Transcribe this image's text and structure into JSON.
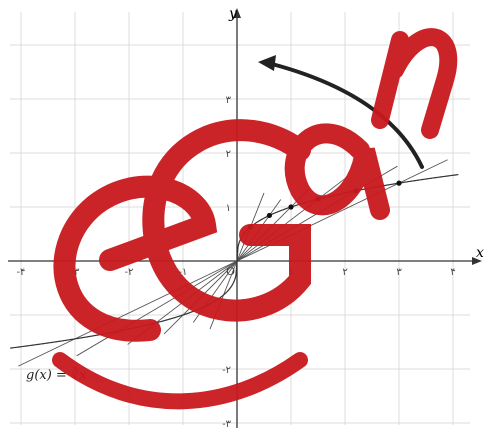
{
  "figure": {
    "axis_labels": {
      "x": "x",
      "y": "y"
    },
    "x_ticks": [
      {
        "value": -4,
        "label": "-۴"
      },
      {
        "value": -3,
        "label": "-۳"
      },
      {
        "value": -2,
        "label": "-۲"
      },
      {
        "value": -1,
        "label": "-۱"
      },
      {
        "value": 1,
        "label": "۱"
      },
      {
        "value": 2,
        "label": "۲"
      },
      {
        "value": 3,
        "label": "۳"
      },
      {
        "value": 4,
        "label": "۴"
      }
    ],
    "y_ticks": [
      {
        "value": 3,
        "label": "۳"
      },
      {
        "value": 2,
        "label": "۲"
      },
      {
        "value": 1,
        "label": "۱"
      },
      {
        "value": -2,
        "label": "-۲"
      },
      {
        "value": -3,
        "label": "-۳"
      }
    ],
    "function_label": "g(x) = ∛x",
    "origin_label": "O",
    "secant_point_xs": [
      0.25,
      0.6,
      1.0,
      1.5,
      2.2,
      3.0
    ],
    "secant_point_xs_negative": [
      -0.25,
      -0.6,
      -1.0,
      -1.5,
      -2.2,
      -3.0
    ],
    "tangent_arrow": {
      "from_angle_deg": 60,
      "to_angle_deg": 112
    },
    "colors": {
      "grid": "#dcdcdc",
      "axis": "#333333",
      "curve": "#333333",
      "secant": "#555555",
      "arrow": "#222222",
      "watermark": "#c8191e"
    }
  },
  "watermark": {
    "text": "e Gan",
    "description_icon": "watermark-logo"
  }
}
